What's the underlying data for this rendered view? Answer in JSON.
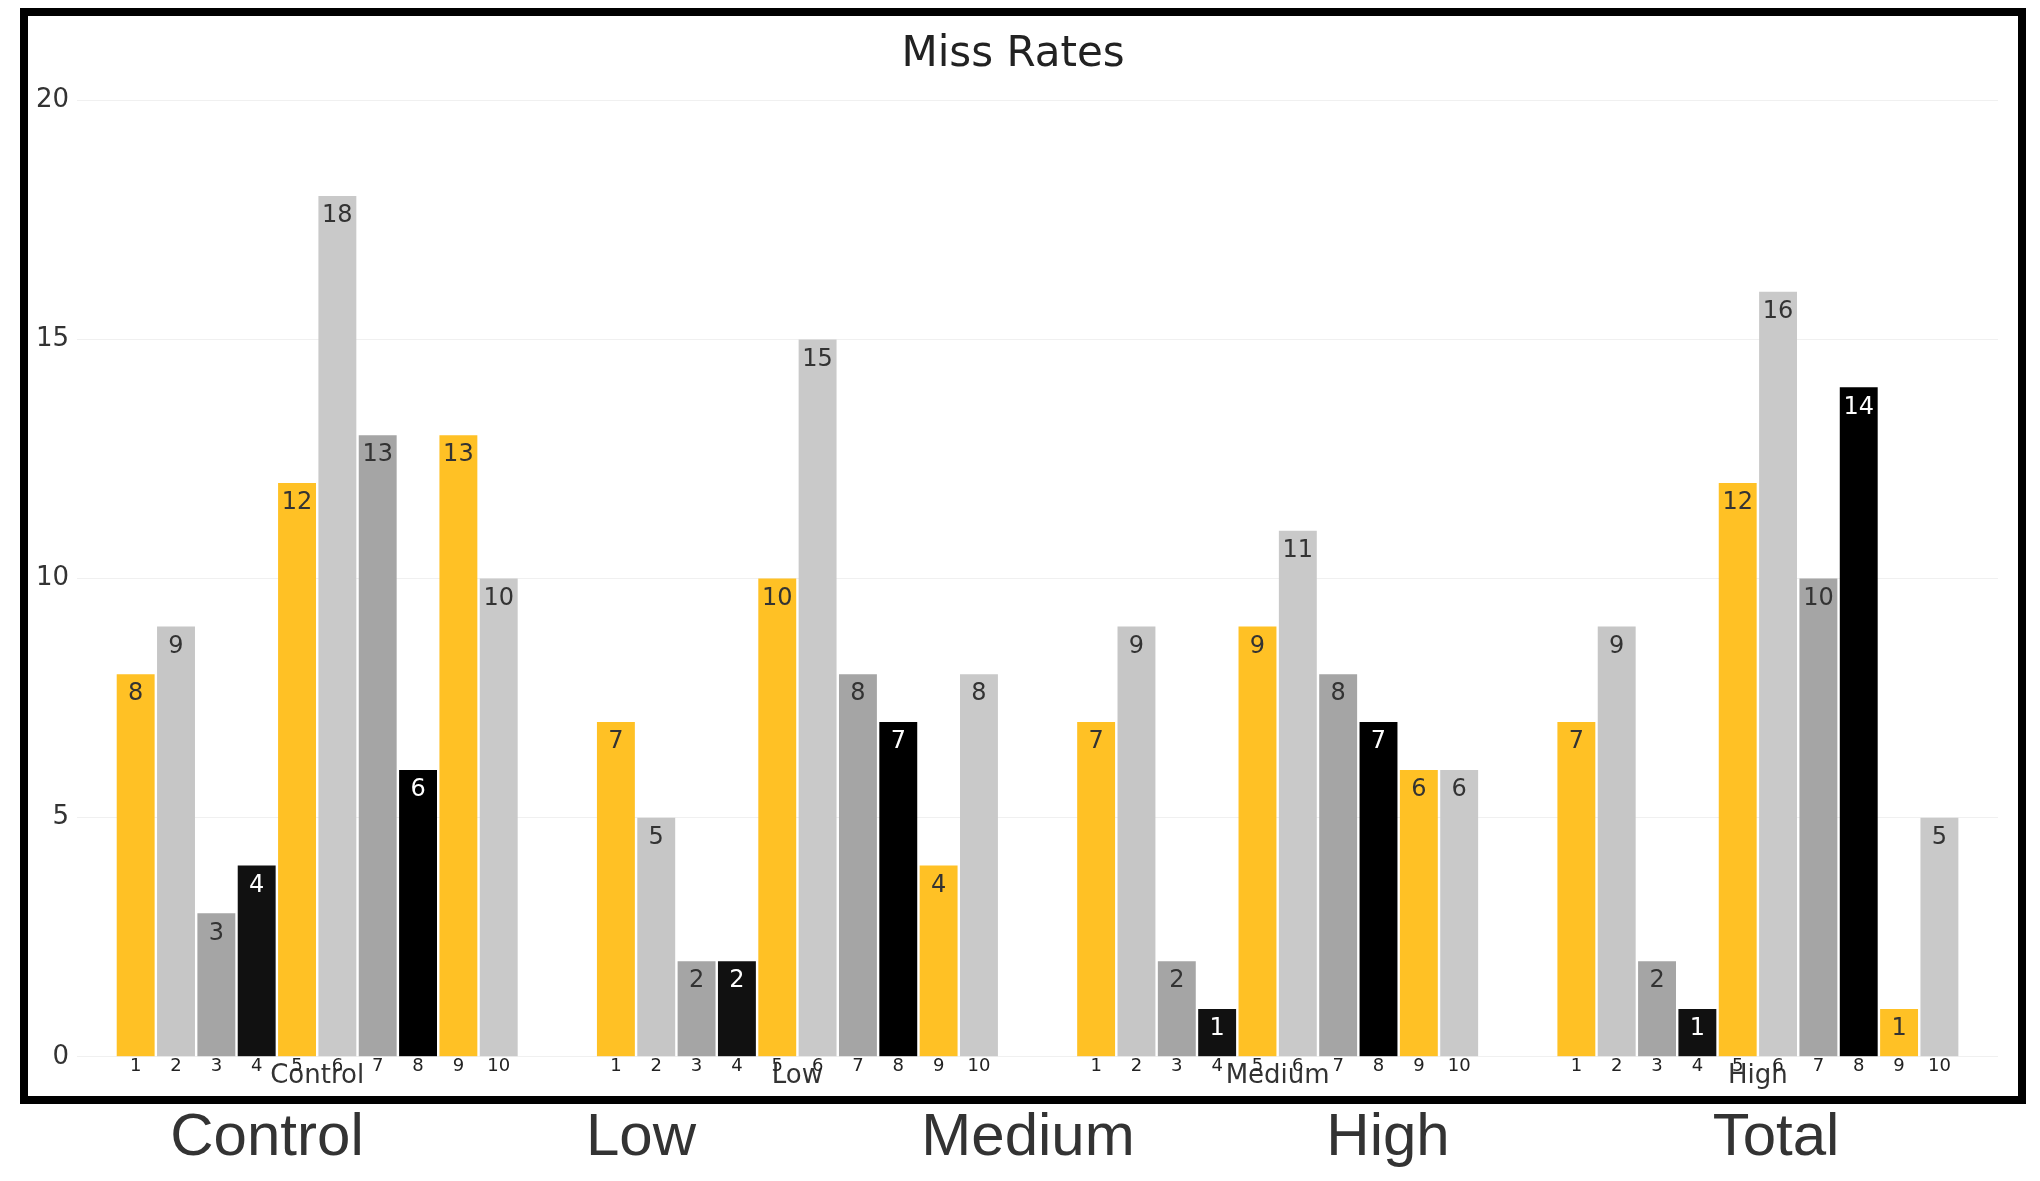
{
  "chart_data": {
    "type": "bar",
    "title": "Miss Rates",
    "categories": [
      "Control",
      "Low",
      "Medium",
      "High"
    ],
    "series": [
      {
        "name": "1",
        "color": "#ffc125",
        "values": [
          8,
          7,
          7,
          7
        ]
      },
      {
        "name": "2",
        "color": "#c6c6c6",
        "values": [
          9,
          5,
          9,
          9
        ]
      },
      {
        "name": "3",
        "color": "#a5a5a5",
        "values": [
          3,
          2,
          2,
          2
        ]
      },
      {
        "name": "4",
        "color": "#111111",
        "values": [
          4,
          2,
          1,
          1
        ]
      },
      {
        "name": "5",
        "color": "#ffc125",
        "values": [
          12,
          10,
          9,
          12
        ]
      },
      {
        "name": "6",
        "color": "#c9c9c9",
        "values": [
          18,
          15,
          11,
          16
        ]
      },
      {
        "name": "7",
        "color": "#a5a5a5",
        "values": [
          13,
          8,
          8,
          10
        ]
      },
      {
        "name": "8",
        "color": "#000000",
        "values": [
          6,
          7,
          7,
          14
        ]
      },
      {
        "name": "9",
        "color": "#ffc125",
        "values": [
          13,
          4,
          6,
          1
        ]
      },
      {
        "name": "10",
        "color": "#c9c9c9",
        "values": [
          10,
          8,
          6,
          5
        ]
      }
    ],
    "ylim": [
      0,
      20
    ],
    "yticks": [
      0,
      5,
      10,
      15,
      20
    ],
    "grid": "y",
    "legend": false,
    "data_labels": true,
    "annotations": [
      "Control",
      "Low",
      "Medium",
      "High",
      "Total"
    ]
  }
}
